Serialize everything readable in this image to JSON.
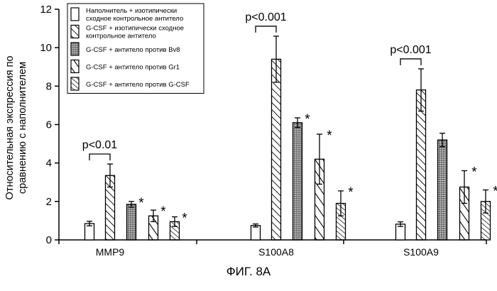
{
  "figure_caption": "ФИГ. 8А",
  "chart_data": {
    "type": "bar",
    "ylabel_lines": [
      "Относительная экспрессия по",
      "сравнению с наполнителем"
    ],
    "xlabel": "",
    "ylim": [
      0,
      12
    ],
    "yticks": [
      "0",
      "2",
      "4",
      "6",
      "8",
      "10",
      "12"
    ],
    "grid": false,
    "legend_position": "top-left",
    "categories": [
      "MMP9",
      "S100A8",
      "S100A9"
    ],
    "series": [
      {
        "name_lines": [
          "Наполнитель + изотипически",
          "сходное контрольное антитело"
        ],
        "pattern": "empty",
        "values": [
          0.85,
          0.75,
          0.82
        ],
        "errors": [
          0.12,
          0.08,
          0.12
        ],
        "significance": [
          "",
          "",
          ""
        ]
      },
      {
        "name_lines": [
          "G-CSF + изотипически сходное",
          "контрольное антитело"
        ],
        "pattern": "hatch-wide",
        "values": [
          3.35,
          9.4,
          7.8
        ],
        "errors": [
          0.6,
          1.2,
          1.1
        ],
        "significance": [
          "",
          "",
          ""
        ]
      },
      {
        "name_lines": [
          "G-CSF + антитело против Bv8"
        ],
        "pattern": "dots",
        "values": [
          1.85,
          6.1,
          5.2
        ],
        "errors": [
          0.15,
          0.25,
          0.35
        ],
        "significance": [
          "*",
          "*",
          ""
        ]
      },
      {
        "name_lines": [
          "G-CSF + антитело против Gr1"
        ],
        "pattern": "hatch-sparse",
        "values": [
          1.25,
          4.2,
          2.75
        ],
        "errors": [
          0.3,
          1.3,
          0.85
        ],
        "significance": [
          "*",
          "*",
          "*"
        ]
      },
      {
        "name_lines": [
          "G-CSF + антитело против G-CSF"
        ],
        "pattern": "hatch-dense",
        "values": [
          0.95,
          1.9,
          2.0
        ],
        "errors": [
          0.25,
          0.65,
          0.6
        ],
        "significance": [
          "*",
          "*",
          "*"
        ]
      }
    ],
    "comparisons": [
      {
        "category": "MMP9",
        "label": "p<0.01",
        "between": [
          0,
          1
        ]
      },
      {
        "category": "S100A8",
        "label": "p<0.001",
        "between": [
          0,
          1
        ]
      },
      {
        "category": "S100A9",
        "label": "p<0.001",
        "between": [
          0,
          1
        ]
      }
    ]
  }
}
